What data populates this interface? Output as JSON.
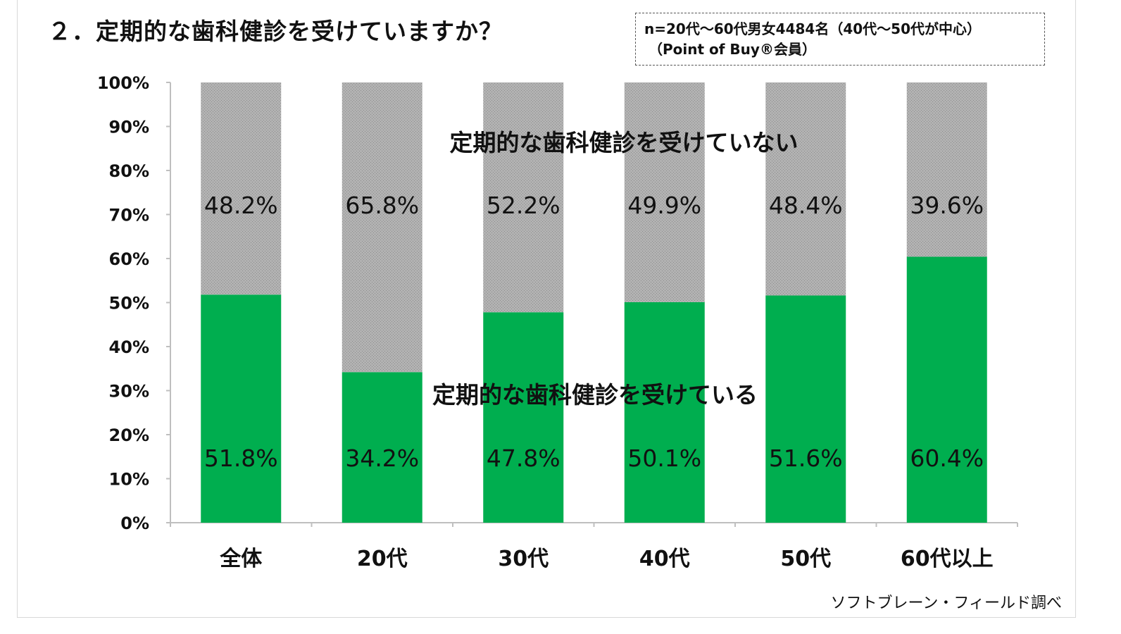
{
  "title": "２．定期的な歯科健診を受けていますか？",
  "sample_note": {
    "line1": "n=20代～60代男女4484名（40代～50代が中心）",
    "line2": "（Point of Buy®会員）"
  },
  "source": "ソフトブレーン・フィールド調べ",
  "colors": {
    "yes": "#00ae4f",
    "no": "#a8a8a8",
    "axis": "#bfbfbf"
  },
  "chart_data": {
    "type": "bar",
    "stacked": true,
    "categories": [
      "全体",
      "20代",
      "30代",
      "40代",
      "50代",
      "60代以上"
    ],
    "series": [
      {
        "name": "定期的な歯科健診を受けている",
        "values": [
          51.8,
          34.2,
          47.8,
          50.1,
          51.6,
          60.4
        ],
        "labels": [
          "51.8%",
          "34.2%",
          "47.8%",
          "50.1%",
          "51.6%",
          "60.4%"
        ]
      },
      {
        "name": "定期的な歯科健診を受けていない",
        "values": [
          48.2,
          65.8,
          52.2,
          49.9,
          48.4,
          39.6
        ],
        "labels": [
          "48.2%",
          "65.8%",
          "52.2%",
          "49.9%",
          "48.4%",
          "39.6%"
        ]
      }
    ],
    "ylim": [
      0,
      100
    ],
    "yticks": [
      "0%",
      "10%",
      "20%",
      "30%",
      "40%",
      "50%",
      "60%",
      "70%",
      "80%",
      "90%",
      "100%"
    ],
    "legend": "inline labels inside bars"
  }
}
